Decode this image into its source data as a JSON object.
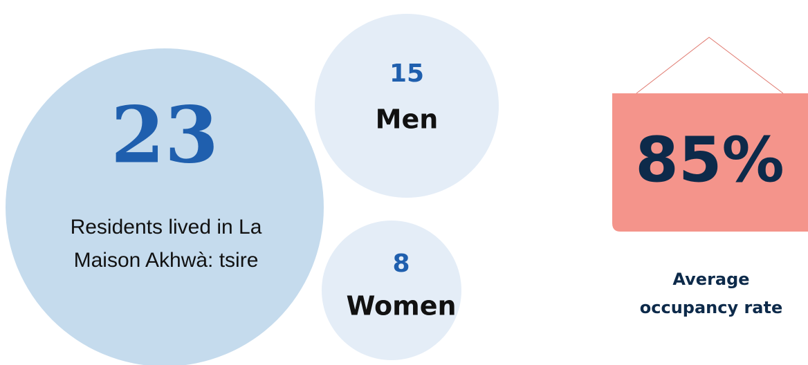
{
  "residents": {
    "total": "23",
    "description_lines": [
      "Residents lived in La",
      "Maison Akhwà: tsire"
    ]
  },
  "men": {
    "count": "15",
    "label": "Men"
  },
  "women": {
    "count": "8",
    "label": "Women"
  },
  "occupancy": {
    "value": "85%",
    "caption_lines": [
      "Average",
      "occupancy rate"
    ]
  }
}
